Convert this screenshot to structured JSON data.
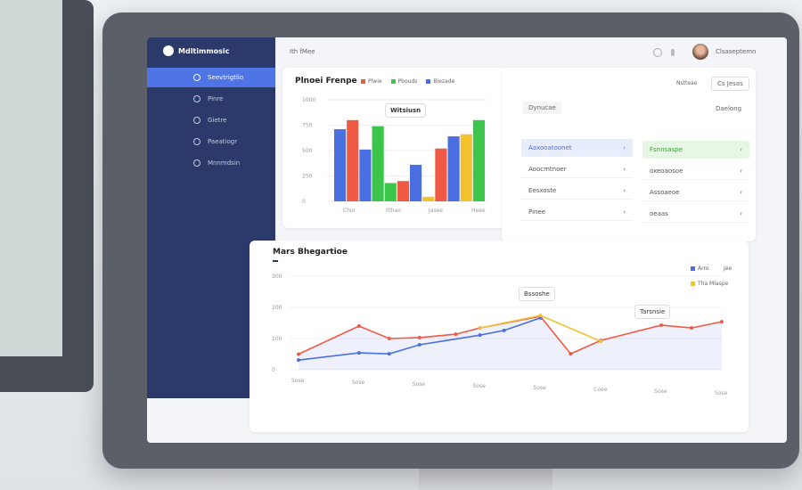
{
  "app": {
    "logo_text": "Mdltimmosic",
    "header_title": "Ith fMee",
    "user_name": "Clsaseptemn"
  },
  "sidebar": {
    "items": [
      {
        "label": "Seevtrigtlio",
        "active": true
      },
      {
        "label": "Pinre"
      },
      {
        "label": "Gietre"
      },
      {
        "label": "Paeatiogr"
      },
      {
        "label": "Mnnmdsin"
      }
    ]
  },
  "bar_card": {
    "title": "Plnoei Frenpe",
    "legend": [
      {
        "label": "Plwie",
        "color": "#ef5a45"
      },
      {
        "label": "Pbouds",
        "color": "#3cc54a"
      },
      {
        "label": "Biezade",
        "color": "#4a6fe0"
      }
    ],
    "tooltip": "Witsiusn"
  },
  "right_card": {
    "top_link": "Nstteae",
    "button": "Cs Jesas",
    "field": "Dynucae",
    "field_button": "Daelong",
    "left_rows": [
      "Aaxooatoonet",
      "Aoocmtnoer",
      "Eesxoste",
      "Pinee"
    ],
    "right_rows": [
      "Fsnnsaspe",
      "oxeoaosoe",
      "Assoaeoe",
      "oeaas"
    ]
  },
  "line_card": {
    "title": "Mars Bhegartioe",
    "legend": [
      {
        "label": "Arro",
        "color": "#4a6fe0"
      },
      {
        "label": "Tha Mlaspe",
        "color": "#f2c12e"
      }
    ],
    "legend_extra": "Jee",
    "tooltips": [
      "Bssoshe",
      "Tarsnsie"
    ]
  },
  "chart_data": [
    {
      "type": "bar",
      "title": "Plnoei Frenpe",
      "yticks": [
        "0",
        "250",
        "500",
        "750",
        "1000"
      ],
      "ylim": [
        0,
        1000
      ],
      "categories": [
        "Chor",
        "Ilthao",
        "Jasee",
        "Heee"
      ],
      "bars": [
        {
          "cat": 0,
          "color": "#4a6fe0",
          "value": 710
        },
        {
          "cat": 0,
          "color": "#ef5a45",
          "value": 800
        },
        {
          "cat": 0,
          "color": "#4a6fe0",
          "value": 510
        },
        {
          "cat": 0,
          "color": "#3cc54a",
          "value": 740
        },
        {
          "cat": 1,
          "color": "#3cc54a",
          "value": 180
        },
        {
          "cat": 1,
          "color": "#ef5a45",
          "value": 200
        },
        {
          "cat": 1,
          "color": "#4a6fe0",
          "value": 360
        },
        {
          "cat": 2,
          "color": "#f2c12e",
          "value": 45
        },
        {
          "cat": 2,
          "color": "#ef5a45",
          "value": 520
        },
        {
          "cat": 2,
          "color": "#4a6fe0",
          "value": 640
        },
        {
          "cat": 3,
          "color": "#f2c12e",
          "value": 660
        },
        {
          "cat": 3,
          "color": "#3cc54a",
          "value": 800
        }
      ]
    },
    {
      "type": "line",
      "yticks": [
        "0",
        "100",
        "200",
        "300"
      ],
      "ylim": [
        0,
        300
      ],
      "categories": [
        "Sose",
        "Sose",
        "Sose",
        "Sose",
        "Sose",
        "Coee",
        "Sose",
        "Sose"
      ],
      "series": [
        {
          "color": "#ef5a45",
          "x": [
            0,
            1,
            1.5,
            2,
            2.6,
            3,
            4,
            4.5,
            5,
            6,
            6.5,
            7
          ],
          "y": [
            50,
            140,
            100,
            103,
            114,
            134,
            171,
            51,
            94,
            143,
            134,
            154
          ]
        },
        {
          "color": "#4a6fe0",
          "x": [
            0,
            1,
            1.5,
            2,
            3,
            3.4,
            4
          ],
          "y": [
            31,
            54,
            51,
            80,
            111,
            126,
            166
          ]
        },
        {
          "color": "#f2c12e",
          "x": [
            3,
            4,
            5
          ],
          "y": [
            134,
            174,
            91
          ]
        }
      ]
    }
  ]
}
